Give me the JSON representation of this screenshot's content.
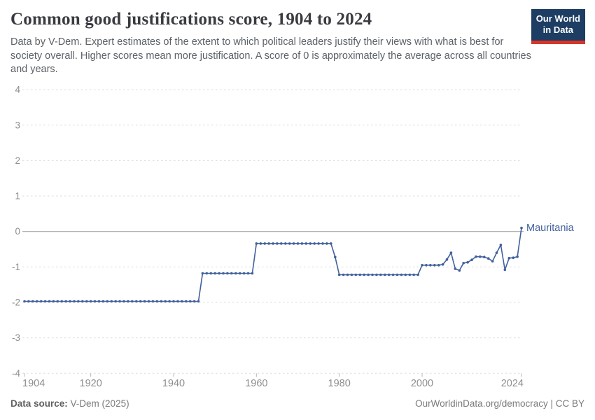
{
  "header": {
    "title": "Common good justifications score, 1904 to 2024",
    "subtitle": "Data by V-Dem. Expert estimates of the extent to which political leaders justify their views with what is best for society overall. Higher scores mean more justification. A score of 0 is approximately the average across all countries and years."
  },
  "logo": {
    "line1": "Our World",
    "line2": "in Data",
    "bg_color": "#1d3d63",
    "accent_color": "#d8352a"
  },
  "chart_data": {
    "type": "line",
    "title": "Common good justifications score, 1904 to 2024",
    "xlabel": "",
    "ylabel": "",
    "xlim": [
      1904,
      2024
    ],
    "ylim": [
      -4,
      4
    ],
    "x_ticks": [
      1904,
      1920,
      1940,
      1960,
      1980,
      2000,
      2024
    ],
    "y_ticks": [
      -4,
      -3,
      -2,
      -1,
      0,
      1,
      2,
      3,
      4
    ],
    "grid": "horizontal dashed gridlines, solid zero line",
    "legend": "entity label at right end of line",
    "line_color": "#41609c",
    "axis_label_color": "#8e8e8e",
    "gridline_color": "#dcdcdc",
    "zero_line_color": "#a6a6a6",
    "series": [
      {
        "name": "Mauritania",
        "color": "#41609c",
        "points": [
          [
            1904,
            -1.97
          ],
          [
            1905,
            -1.97
          ],
          [
            1906,
            -1.97
          ],
          [
            1907,
            -1.97
          ],
          [
            1908,
            -1.97
          ],
          [
            1909,
            -1.97
          ],
          [
            1910,
            -1.97
          ],
          [
            1911,
            -1.97
          ],
          [
            1912,
            -1.97
          ],
          [
            1913,
            -1.97
          ],
          [
            1914,
            -1.97
          ],
          [
            1915,
            -1.97
          ],
          [
            1916,
            -1.97
          ],
          [
            1917,
            -1.97
          ],
          [
            1918,
            -1.97
          ],
          [
            1919,
            -1.97
          ],
          [
            1920,
            -1.97
          ],
          [
            1921,
            -1.97
          ],
          [
            1922,
            -1.97
          ],
          [
            1923,
            -1.97
          ],
          [
            1924,
            -1.97
          ],
          [
            1925,
            -1.97
          ],
          [
            1926,
            -1.97
          ],
          [
            1927,
            -1.97
          ],
          [
            1928,
            -1.97
          ],
          [
            1929,
            -1.97
          ],
          [
            1930,
            -1.97
          ],
          [
            1931,
            -1.97
          ],
          [
            1932,
            -1.97
          ],
          [
            1933,
            -1.97
          ],
          [
            1934,
            -1.97
          ],
          [
            1935,
            -1.97
          ],
          [
            1936,
            -1.97
          ],
          [
            1937,
            -1.97
          ],
          [
            1938,
            -1.97
          ],
          [
            1939,
            -1.97
          ],
          [
            1940,
            -1.97
          ],
          [
            1941,
            -1.97
          ],
          [
            1942,
            -1.97
          ],
          [
            1943,
            -1.97
          ],
          [
            1944,
            -1.97
          ],
          [
            1945,
            -1.97
          ],
          [
            1946,
            -1.97
          ],
          [
            1947,
            -1.18
          ],
          [
            1948,
            -1.18
          ],
          [
            1949,
            -1.18
          ],
          [
            1950,
            -1.18
          ],
          [
            1951,
            -1.18
          ],
          [
            1952,
            -1.18
          ],
          [
            1953,
            -1.18
          ],
          [
            1954,
            -1.18
          ],
          [
            1955,
            -1.18
          ],
          [
            1956,
            -1.18
          ],
          [
            1957,
            -1.18
          ],
          [
            1958,
            -1.18
          ],
          [
            1959,
            -1.18
          ],
          [
            1960,
            -0.34
          ],
          [
            1961,
            -0.34
          ],
          [
            1962,
            -0.34
          ],
          [
            1963,
            -0.34
          ],
          [
            1964,
            -0.34
          ],
          [
            1965,
            -0.34
          ],
          [
            1966,
            -0.34
          ],
          [
            1967,
            -0.34
          ],
          [
            1968,
            -0.34
          ],
          [
            1969,
            -0.34
          ],
          [
            1970,
            -0.34
          ],
          [
            1971,
            -0.34
          ],
          [
            1972,
            -0.34
          ],
          [
            1973,
            -0.34
          ],
          [
            1974,
            -0.34
          ],
          [
            1975,
            -0.34
          ],
          [
            1976,
            -0.34
          ],
          [
            1977,
            -0.34
          ],
          [
            1978,
            -0.34
          ],
          [
            1979,
            -0.72
          ],
          [
            1980,
            -1.22
          ],
          [
            1981,
            -1.22
          ],
          [
            1982,
            -1.22
          ],
          [
            1983,
            -1.22
          ],
          [
            1984,
            -1.22
          ],
          [
            1985,
            -1.22
          ],
          [
            1986,
            -1.22
          ],
          [
            1987,
            -1.22
          ],
          [
            1988,
            -1.22
          ],
          [
            1989,
            -1.22
          ],
          [
            1990,
            -1.22
          ],
          [
            1991,
            -1.22
          ],
          [
            1992,
            -1.22
          ],
          [
            1993,
            -1.22
          ],
          [
            1994,
            -1.22
          ],
          [
            1995,
            -1.22
          ],
          [
            1996,
            -1.22
          ],
          [
            1997,
            -1.22
          ],
          [
            1998,
            -1.22
          ],
          [
            1999,
            -1.22
          ],
          [
            2000,
            -0.95
          ],
          [
            2001,
            -0.95
          ],
          [
            2002,
            -0.95
          ],
          [
            2003,
            -0.95
          ],
          [
            2004,
            -0.95
          ],
          [
            2005,
            -0.93
          ],
          [
            2006,
            -0.79
          ],
          [
            2007,
            -0.6
          ],
          [
            2008,
            -1.05
          ],
          [
            2009,
            -1.1
          ],
          [
            2010,
            -0.89
          ],
          [
            2011,
            -0.87
          ],
          [
            2012,
            -0.8
          ],
          [
            2013,
            -0.71
          ],
          [
            2014,
            -0.71
          ],
          [
            2015,
            -0.72
          ],
          [
            2016,
            -0.76
          ],
          [
            2017,
            -0.84
          ],
          [
            2018,
            -0.6
          ],
          [
            2019,
            -0.38
          ],
          [
            2020,
            -1.08
          ],
          [
            2021,
            -0.75
          ],
          [
            2022,
            -0.74
          ],
          [
            2023,
            -0.71
          ],
          [
            2024,
            0.1
          ]
        ]
      }
    ]
  },
  "footer": {
    "source_label": "Data source:",
    "source_value": "V-Dem (2025)",
    "credit": "OurWorldinData.org/democracy | CC BY"
  }
}
